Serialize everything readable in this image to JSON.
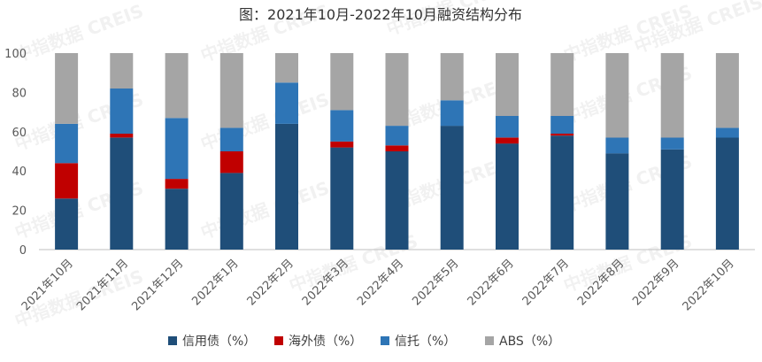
{
  "chart_data": {
    "type": "bar",
    "stacked": true,
    "title": "图：2021年10月-2022年10月融资结构分布",
    "xlabel": "",
    "ylabel": "",
    "ylim": [
      0,
      100
    ],
    "yticks": [
      0,
      20,
      40,
      60,
      80,
      100
    ],
    "grid": false,
    "legend_position": "bottom",
    "watermark": "中指数据 CREIS",
    "categories": [
      "2021年10月",
      "2021年11月",
      "2021年12月",
      "2022年1月",
      "2022年2月",
      "2022年3月",
      "2022年4月",
      "2022年5月",
      "2022年6月",
      "2022年7月",
      "2022年8月",
      "2022年9月",
      "2022年10月"
    ],
    "series": [
      {
        "name": "信用债（%）",
        "color": "#1f4e79",
        "values": [
          26,
          57,
          31,
          39,
          64,
          52,
          50,
          63,
          54,
          58,
          49,
          51,
          57
        ]
      },
      {
        "name": "海外债（%）",
        "color": "#c00000",
        "values": [
          18,
          2,
          5,
          11,
          0,
          3,
          3,
          0,
          3,
          1,
          0,
          0,
          0
        ]
      },
      {
        "name": "信托（%）",
        "color": "#2e75b6",
        "values": [
          20,
          23,
          31,
          12,
          21,
          16,
          10,
          13,
          11,
          9,
          8,
          6,
          5
        ]
      },
      {
        "name": "ABS（%）",
        "color": "#a5a5a5",
        "values": [
          36,
          18,
          33,
          38,
          15,
          29,
          37,
          24,
          32,
          32,
          43,
          43,
          38
        ]
      }
    ]
  }
}
